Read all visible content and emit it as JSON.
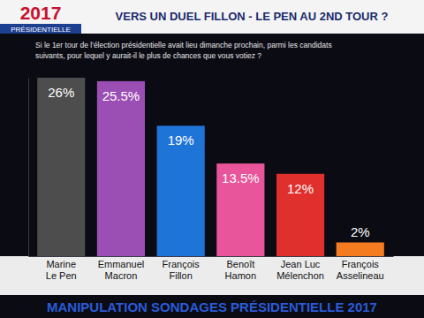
{
  "header": {
    "logo_year": "2017",
    "logo_label": "PRÉSIDENTIELLE"
  },
  "chart_data": {
    "type": "bar",
    "title": "VERS UN DUEL FILLON - LE PEN AU 2ND TOUR ?",
    "subtitle": "Si le 1er tour de l'élection présidentielle avait lieu dimanche prochain, parmi les candidats\nsuivants, pour lequel y aurait-il le plus de chances que vous votiez ?",
    "caption": "MANIPULATION SONDAGES PRÉSIDENTIELLE 2017",
    "categories": [
      "Marine\nLe Pen",
      "Emmanuel\nMacron",
      "François\nFillon",
      "Benoît\nHamon",
      "Jean Luc\nMélenchon",
      "François\nAsselineau"
    ],
    "values": [
      26,
      25.5,
      19,
      13.5,
      12,
      2
    ],
    "value_labels": [
      "26%",
      "25.5%",
      "19%",
      "13.5%",
      "12%",
      "2%"
    ],
    "colors": [
      "#4d4d4d",
      "#9b4fb5",
      "#1f74d8",
      "#e8559a",
      "#e0302e",
      "#f47b20"
    ],
    "ylim": [
      0,
      26
    ],
    "data_labels": true,
    "tick_labels": "x",
    "grid": false
  }
}
